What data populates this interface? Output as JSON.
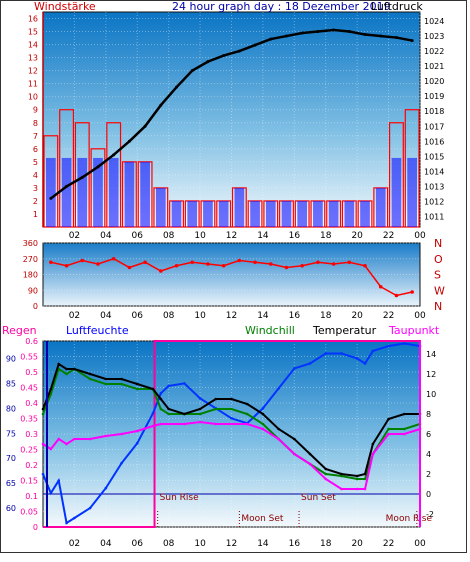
{
  "header": {
    "title": "24 hour graph day : 18 Dezember 2019",
    "left_label": "Windstärke",
    "right_label": "Luftdruck"
  },
  "colors": {
    "background": "#ffffff",
    "panel_gradient_top": "#0a74c4",
    "panel_gradient_bottom": "#f4f9fc",
    "wind_speed": "#ff0000",
    "wind_gust_base": "#0000ff",
    "pressure": "#000000",
    "direction": "#ff0000",
    "rain": "#ff00a0",
    "humidity": "#0033ff",
    "windchill": "#008000",
    "temperature": "#000000",
    "dewpoint": "#ff00ff",
    "axis_blue": "#0000aa",
    "axis_red": "#c00000",
    "title_blue": "#0000aa"
  },
  "x_ticks": [
    "02",
    "04",
    "06",
    "08",
    "10",
    "12",
    "14",
    "16",
    "18",
    "20",
    "22",
    "00"
  ],
  "chart_data": [
    {
      "type": "line",
      "name": "wind_and_pressure",
      "title": "24 hour graph day : 18 Dezember 2019",
      "y_left_label": "Windstärke",
      "y_right_label": "Luftdruck",
      "y_left_ticks": [
        "1",
        "2",
        "3",
        "4",
        "5",
        "6",
        "7",
        "8",
        "9",
        "10",
        "11",
        "12",
        "13",
        "14",
        "15",
        "16"
      ],
      "y_right_ticks": [
        "1011",
        "1012",
        "1013",
        "1014",
        "1015",
        "1016",
        "1017",
        "1018",
        "1019",
        "1020",
        "1021",
        "1022",
        "1023",
        "1024"
      ],
      "y_left_range": [
        0,
        16.5
      ],
      "y_right_range": [
        1010.3,
        1024.6
      ],
      "x_hours": [
        0.5,
        1.5,
        2.5,
        3.5,
        4.5,
        5.5,
        6.5,
        7.5,
        8.5,
        9.5,
        10.5,
        11.5,
        12.5,
        13.5,
        14.5,
        15.5,
        16.5,
        17.5,
        18.5,
        19.5,
        20.5,
        21.5,
        22.5,
        23.5
      ],
      "series": [
        {
          "name": "Windstärke",
          "values": [
            7,
            9,
            8,
            6,
            8,
            5,
            5,
            3,
            2,
            2,
            2,
            2,
            3,
            2,
            2,
            2,
            2,
            2,
            2,
            2,
            2,
            3,
            8,
            9
          ]
        },
        {
          "name": "Luftdruck",
          "values": [
            1012.2,
            1013.0,
            1013.6,
            1014.3,
            1015.1,
            1016.0,
            1017.0,
            1018.4,
            1019.6,
            1020.7,
            1021.3,
            1021.7,
            1022.0,
            1022.4,
            1022.8,
            1023.0,
            1023.2,
            1023.3,
            1023.4,
            1023.3,
            1023.1,
            1023.0,
            1022.9,
            1022.7
          ]
        }
      ]
    },
    {
      "type": "scatter",
      "name": "wind_direction",
      "y_left_ticks": [
        "0",
        "90",
        "180",
        "270",
        "360"
      ],
      "y_right_labels": [
        "N",
        "W",
        "S",
        "O",
        "N"
      ],
      "y_range": [
        0,
        360
      ],
      "x_hours": [
        0.5,
        1.5,
        2.5,
        3.5,
        4.5,
        5.5,
        6.5,
        7.5,
        8.5,
        9.5,
        10.5,
        11.5,
        12.5,
        13.5,
        14.5,
        15.5,
        16.5,
        17.5,
        18.5,
        19.5,
        20.5,
        21.5,
        22.5,
        23.5
      ],
      "values": [
        250,
        230,
        260,
        240,
        270,
        220,
        250,
        200,
        230,
        250,
        240,
        230,
        260,
        250,
        240,
        220,
        230,
        250,
        240,
        250,
        230,
        110,
        60,
        80
      ]
    },
    {
      "type": "line",
      "name": "climate",
      "legend": [
        "Regen",
        "Luftfeuchte",
        "Windchill",
        "Temperatur",
        "Taupunkt"
      ],
      "y_humidity_ticks": [
        "60",
        "65",
        "70",
        "75",
        "80",
        "85",
        "90"
      ],
      "y_rain_ticks": [
        "0",
        "0.05",
        "0.1",
        "0.15",
        "0.2",
        "0.25",
        "0.3",
        "0.35",
        "0.4",
        "0.45",
        "0.5",
        "0.55",
        "0.6"
      ],
      "y_temp_ticks": [
        "-2",
        "0",
        "2",
        "4",
        "6",
        "8",
        "10",
        "12",
        "14"
      ],
      "humidity_range": [
        56.2,
        93.5
      ],
      "rain_range": [
        0,
        0.6
      ],
      "temp_range": [
        -3.3,
        15.3
      ],
      "annotations": [
        {
          "label": "Sun Rise",
          "hour": 7.3
        },
        {
          "label": "Moon Set",
          "hour": 12.5
        },
        {
          "label": "Sun Set",
          "hour": 16.3
        },
        {
          "label": "Moon Rise",
          "hour": 23.8
        }
      ],
      "rain_box": {
        "start_hour": 7.1,
        "end_hour": 24.0,
        "value": 0.6
      },
      "x_hours": [
        0.0,
        0.5,
        1.0,
        1.5,
        2.0,
        3.0,
        4.0,
        5.0,
        6.0,
        7.0,
        7.5,
        8.0,
        9.0,
        10.0,
        11.0,
        12.0,
        13.0,
        14.0,
        15.0,
        16.0,
        17.0,
        18.0,
        19.0,
        20.0,
        20.5,
        21.0,
        22.0,
        23.0,
        24.0
      ],
      "series": [
        {
          "name": "Luftfeuchte",
          "values": [
            66.8,
            63.0,
            65.5,
            57.0,
            58.0,
            60.0,
            64.0,
            69.0,
            73.0,
            79.0,
            83.0,
            84.5,
            85.0,
            82.0,
            80.0,
            78.0,
            77.0,
            80.0,
            84.0,
            88.0,
            89.0,
            91.0,
            91.0,
            90.0,
            89.0,
            91.5,
            92.5,
            93.0,
            92.5
          ]
        },
        {
          "name": "Windchill",
          "values": [
            8.0,
            10.0,
            12.5,
            12.0,
            12.5,
            11.5,
            11.0,
            11.0,
            10.5,
            10.5,
            8.5,
            8.0,
            8.0,
            8.0,
            8.5,
            8.5,
            8.0,
            7.0,
            5.5,
            4.0,
            3.0,
            2.0,
            1.8,
            1.5,
            1.5,
            4.0,
            6.5,
            6.5,
            7.0
          ]
        },
        {
          "name": "Temperatur",
          "values": [
            8.5,
            10.5,
            13.0,
            12.5,
            12.5,
            12.0,
            11.5,
            11.5,
            11.0,
            10.5,
            9.5,
            8.5,
            8.0,
            8.5,
            9.5,
            9.5,
            9.0,
            8.0,
            6.5,
            5.5,
            4.0,
            2.5,
            2.0,
            1.8,
            2.0,
            5.0,
            7.5,
            8.0,
            8.0
          ]
        },
        {
          "name": "Taupunkt",
          "values": [
            5.0,
            4.5,
            5.5,
            5.0,
            5.5,
            5.5,
            5.8,
            6.0,
            6.3,
            6.8,
            7.0,
            7.0,
            7.0,
            7.2,
            7.0,
            7.0,
            7.0,
            6.5,
            5.5,
            4.0,
            3.0,
            1.5,
            0.5,
            0.5,
            0.5,
            4.0,
            6.0,
            6.0,
            6.5
          ]
        }
      ]
    }
  ]
}
